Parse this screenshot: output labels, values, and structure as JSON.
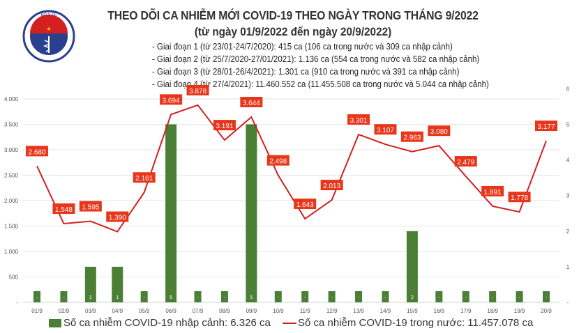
{
  "header": {
    "title": "THEO DÕI CA NHIỄM MỚI COVID-19 THEO NGÀY TRONG THÁNG 9/2022",
    "subtitle": "(từ ngày 01/9/2022 đến ngày 20/9/2022)",
    "logo_text": "BỘ Y TẾ · MINISTRY OF HEALTH",
    "phases": [
      "- Giai đoạn 1 (từ 23/01-24/7/2020): 415 ca (106 ca trong nước và 309 ca nhập cảnh)",
      "- Giai đoạn 2 (từ 25/7/2020-27/01/2021): 1.136 ca (554 ca trong nước và 582 ca nhập cảnh)",
      "- Giai đoạn 3 (từ 28/01-26/4/2021): 1.301 ca (910 ca trong nước và 391 ca nhập cảnh)",
      "- Giai đoạn 4 (từ 27/4/2021): 11.460.552 ca (11.455.508 ca trong nước và 5.044 ca nhập cảnh)"
    ]
  },
  "chart_data": {
    "type": "bar+line",
    "categories": [
      "01/9",
      "02/9",
      "03/9",
      "04/9",
      "05/9",
      "06/9",
      "07/9",
      "08/9",
      "09/9",
      "10/9",
      "11/9",
      "12/9",
      "13/9",
      "14/9",
      "15/9",
      "16/9",
      "17/9",
      "18/9",
      "19/9",
      "20/9"
    ],
    "series": [
      {
        "name": "Số ca nhiễm COVID-19 nhập cảnh: 6.326 ca",
        "type": "bar",
        "axis": "right",
        "color": "#4a7f35",
        "values": [
          0,
          0,
          1,
          1,
          0,
          5,
          0,
          0,
          5,
          0,
          0,
          0,
          0,
          0,
          2,
          0,
          0,
          0,
          0,
          0
        ],
        "labels": [
          "-",
          "-",
          "1",
          "1",
          "-",
          "5",
          "-",
          "-",
          "5",
          "-",
          "-",
          "-",
          "-",
          "-",
          "2",
          "-",
          "-",
          "-",
          "-",
          "-"
        ]
      },
      {
        "name": "Số ca nhiễm COVID-19 trong nước: 11.457.078 ca",
        "type": "line",
        "axis": "left",
        "color": "#d41f1f",
        "values": [
          2680,
          1548,
          1595,
          1390,
          2161,
          3694,
          3878,
          3191,
          3644,
          2498,
          1643,
          2013,
          3301,
          3107,
          2963,
          3080,
          2479,
          1891,
          1778,
          3177
        ],
        "labels": [
          "2.680",
          "1.548",
          "1.595",
          "1.390",
          "2.161",
          "3.694",
          "3.878",
          "3.191",
          "3.644",
          "2.498",
          "1.643",
          "2.013",
          "3.301",
          "3.107",
          "2.963",
          "3.080",
          "2.479",
          "1.891",
          "1.778",
          "3.177"
        ]
      }
    ],
    "left_axis": {
      "range": [
        0,
        4000
      ],
      "ticks": [
        "-",
        "500",
        "1.000",
        "1.500",
        "2.000",
        "2.500",
        "3.000",
        "3.500",
        "4.000"
      ]
    },
    "right_axis": {
      "range": [
        0,
        6
      ],
      "ticks": [
        "-",
        "1",
        "2",
        "3",
        "4",
        "5",
        "6"
      ]
    },
    "grid": true,
    "legend": "bottom",
    "label_color": "#e8361b"
  }
}
